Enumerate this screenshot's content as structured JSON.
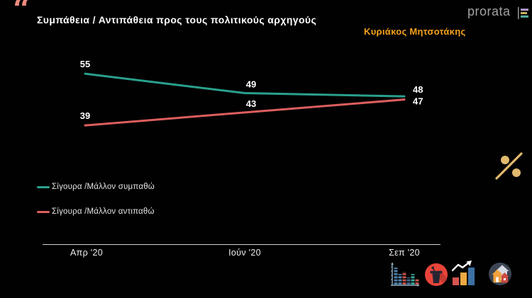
{
  "header": {
    "quote_mark": "“",
    "title": "Συμπάθεια / Αντιπάθεια προς τους πολιτικούς αρχηγούς",
    "subtitle": "Κυριάκος Μητσοτάκης",
    "logo_text": "prorata"
  },
  "chart_data": {
    "type": "line",
    "categories": [
      "Απρ '20",
      "Ιούν '20",
      "Σεπ '20"
    ],
    "series": [
      {
        "name": "Σίγουρα /Μάλλον συμπαθώ",
        "color": "#2aa08d",
        "values": [
          55,
          49,
          48
        ]
      },
      {
        "name": "Σίγουρα /Μάλλον αντιπαθώ",
        "color": "#dd5e5e",
        "values": [
          39,
          43,
          47
        ]
      }
    ],
    "ylim": [
      30,
      60
    ],
    "grid": false,
    "data_labels": true,
    "legend_position": "left-middle",
    "x_axis_line": true
  },
  "icons": {
    "quote": "opening-double-quote",
    "logo_bars": "prorata-logo-bars",
    "percent": "percent-sign",
    "footer": [
      "segmented-bar-chart",
      "speech-podium",
      "growth-bars-arrow",
      "houses"
    ]
  },
  "colors": {
    "background": "#010101",
    "title_text": "#fdfdfd",
    "subtitle_accent": "#f5a11e",
    "quote_accent": "#ec8b80",
    "logo_gray": "#a2a2a2",
    "axis": "#cfcfcf",
    "percent_gold": "#e2ba6e",
    "series_positive": "#2aa08d",
    "series_negative": "#dd5e5e"
  }
}
